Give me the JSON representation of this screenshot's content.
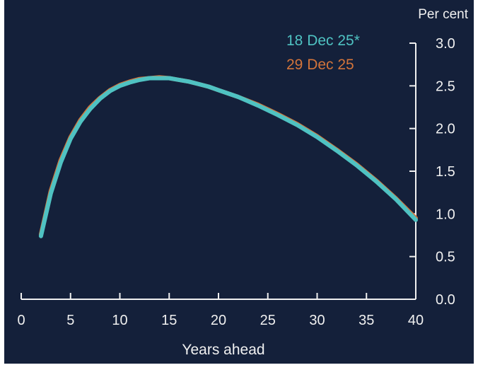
{
  "chart_data": {
    "type": "line",
    "xlabel": "Years ahead",
    "ylabel": "Per cent",
    "xlim": [
      0,
      40
    ],
    "ylim": [
      0,
      3
    ],
    "x_ticks": [
      0,
      5,
      10,
      15,
      20,
      25,
      30,
      35,
      40
    ],
    "y_ticks": [
      0.0,
      0.5,
      1.0,
      1.5,
      2.0,
      2.5,
      3.0
    ],
    "y_tick_labels": [
      "0.0",
      "0.5",
      "1.0",
      "1.5",
      "2.0",
      "2.5",
      "3.0"
    ],
    "y_axis_side": "right",
    "legend_position": "top-right",
    "grid": false,
    "colors": {
      "background": "#14203a",
      "text": "#f0f0f0",
      "axis": "#f0f0f0"
    },
    "series": [
      {
        "name": "29 Dec 25",
        "color": "#d3743a",
        "x": [
          2,
          3,
          4,
          5,
          6,
          7,
          8,
          9,
          10,
          11,
          12,
          13,
          14,
          15,
          16,
          17,
          18,
          19,
          20,
          22,
          24,
          26,
          28,
          30,
          32,
          34,
          36,
          38,
          40
        ],
        "y": [
          0.76,
          1.27,
          1.63,
          1.9,
          2.1,
          2.25,
          2.36,
          2.45,
          2.51,
          2.55,
          2.58,
          2.59,
          2.6,
          2.59,
          2.57,
          2.55,
          2.52,
          2.49,
          2.45,
          2.37,
          2.28,
          2.17,
          2.05,
          1.91,
          1.75,
          1.58,
          1.39,
          1.18,
          0.95
        ]
      },
      {
        "name": "18 Dec 25*",
        "color": "#4fc2c2",
        "x": [
          2,
          3,
          4,
          5,
          6,
          7,
          8,
          9,
          10,
          11,
          12,
          13,
          14,
          15,
          16,
          17,
          18,
          19,
          20,
          22,
          24,
          26,
          28,
          30,
          32,
          34,
          36,
          38,
          40
        ],
        "y": [
          0.74,
          1.24,
          1.6,
          1.88,
          2.08,
          2.23,
          2.35,
          2.44,
          2.5,
          2.54,
          2.57,
          2.59,
          2.59,
          2.59,
          2.57,
          2.55,
          2.52,
          2.49,
          2.45,
          2.37,
          2.27,
          2.16,
          2.04,
          1.9,
          1.74,
          1.57,
          1.38,
          1.17,
          0.93
        ]
      }
    ]
  }
}
